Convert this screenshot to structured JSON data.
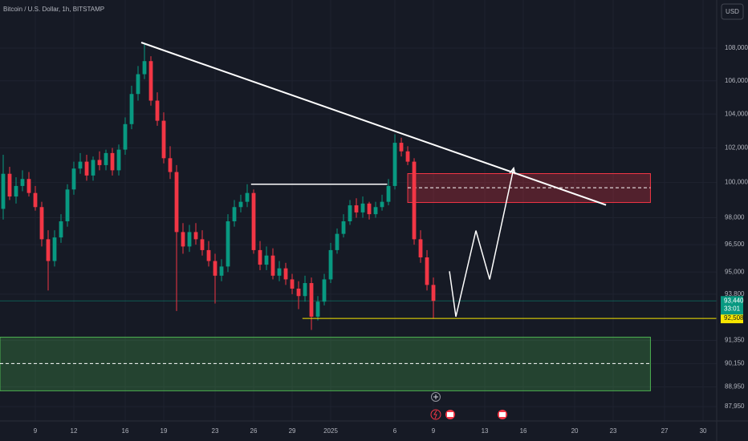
{
  "chart_data": {
    "type": "candlestick",
    "title": "Bitcoin / U.S. Dollar, 1h, BITSTAMP",
    "currency": "USD",
    "log_scale": true,
    "up_color": "#089981",
    "down_color": "#f23645",
    "xlim": [
      -2.75,
      53.06
    ],
    "xticks": [
      {
        "value": 0,
        "label": "9"
      },
      {
        "value": 3,
        "label": "12"
      },
      {
        "value": 7,
        "label": "16"
      },
      {
        "value": 10,
        "label": "19"
      },
      {
        "value": 14,
        "label": "23"
      },
      {
        "value": 17,
        "label": "26"
      },
      {
        "value": 20,
        "label": "29"
      },
      {
        "value": 23,
        "label": "2025"
      },
      {
        "value": 28,
        "label": "6"
      },
      {
        "value": 31,
        "label": "9"
      },
      {
        "value": 35,
        "label": "13"
      },
      {
        "value": 38,
        "label": "16"
      },
      {
        "value": 42,
        "label": "20"
      },
      {
        "value": 45,
        "label": "23"
      },
      {
        "value": 49,
        "label": "27"
      },
      {
        "value": 52,
        "label": "30"
      }
    ],
    "ylim": [
      87230,
      111020
    ],
    "yticks": [
      {
        "value": 108000,
        "label": "108,000"
      },
      {
        "value": 106000,
        "label": "106,000"
      },
      {
        "value": 104000,
        "label": "104,000"
      },
      {
        "value": 102000,
        "label": "102,000"
      },
      {
        "value": 100000,
        "label": "100,000"
      },
      {
        "value": 98000,
        "label": "98,000"
      },
      {
        "value": 96500,
        "label": "96,500"
      },
      {
        "value": 95000,
        "label": "95,000"
      },
      {
        "value": 93800,
        "label": "93,800"
      },
      {
        "value": 91350,
        "label": "91,350"
      },
      {
        "value": 90150,
        "label": "90,150"
      },
      {
        "value": 88950,
        "label": "88,950"
      },
      {
        "value": 87950,
        "label": "87,950"
      }
    ],
    "x": [
      -2.5,
      -2,
      -1.5,
      -1,
      -0.5,
      0,
      0.5,
      1,
      1.5,
      2,
      2.5,
      3,
      3.5,
      4,
      4.5,
      5,
      5.5,
      6,
      6.5,
      7,
      7.5,
      8,
      8.5,
      9,
      9.5,
      10,
      10.5,
      11,
      11.5,
      12,
      12.5,
      13,
      13.5,
      14,
      14.5,
      15,
      15.5,
      16,
      16.5,
      17,
      17.5,
      18,
      18.5,
      19,
      19.5,
      20,
      20.5,
      21,
      21.5,
      22,
      22.5,
      23,
      23.5,
      24,
      24.5,
      25,
      25.5,
      26,
      26.5,
      27,
      27.5,
      28,
      28.5,
      29,
      29.5,
      30,
      30.5,
      31
    ],
    "open": [
      98500,
      100500,
      99200,
      99800,
      100200,
      99400,
      98600,
      96800,
      95600,
      96900,
      97800,
      99600,
      100800,
      101200,
      100400,
      101300,
      101000,
      101700,
      100700,
      101900,
      103400,
      105200,
      106400,
      107200,
      104800,
      103600,
      101400,
      100600,
      97200,
      96400,
      97200,
      96800,
      96200,
      95600,
      94800,
      95300,
      97800,
      98600,
      98900,
      99400,
      96200,
      95400,
      95900,
      94800,
      95200,
      94600,
      94100,
      93700,
      94400,
      92600,
      93400,
      94600,
      96200,
      97100,
      97800,
      98700,
      98300,
      98800,
      98200,
      98600,
      98900,
      99800,
      102300,
      101800,
      101200,
      96800,
      95800,
      94300
    ],
    "high": [
      101600,
      100900,
      100300,
      100700,
      100600,
      99800,
      98900,
      97300,
      97300,
      98200,
      99900,
      101200,
      101700,
      101600,
      101500,
      101800,
      101900,
      102000,
      102200,
      103800,
      105700,
      106900,
      108300,
      107500,
      105300,
      104100,
      102100,
      101000,
      97700,
      97600,
      97700,
      97300,
      96700,
      96000,
      95700,
      98200,
      99000,
      99300,
      99900,
      99600,
      96700,
      96400,
      96300,
      95600,
      95500,
      94900,
      94500,
      94800,
      94700,
      93700,
      94900,
      96600,
      97400,
      98200,
      99000,
      99100,
      99200,
      98900,
      98900,
      99300,
      100200,
      102800,
      102600,
      102100,
      101400,
      97300,
      96200,
      94700
    ],
    "low": [
      97900,
      99000,
      98800,
      99500,
      99200,
      98400,
      96400,
      94000,
      95300,
      96600,
      97500,
      99300,
      100500,
      100100,
      100100,
      100700,
      100700,
      100400,
      100400,
      101600,
      103100,
      104800,
      106100,
      104500,
      103300,
      101100,
      100200,
      92900,
      96000,
      96100,
      96500,
      95900,
      95300,
      93300,
      94500,
      95000,
      97500,
      98300,
      98600,
      96000,
      95100,
      95100,
      94600,
      94500,
      94300,
      93800,
      93000,
      93400,
      91900,
      92400,
      93200,
      94400,
      96000,
      96900,
      97600,
      98000,
      98000,
      97900,
      98000,
      98400,
      98700,
      99600,
      101500,
      101000,
      96500,
      95500,
      94000,
      92500
    ],
    "close": [
      100500,
      99200,
      99800,
      100200,
      99400,
      98600,
      96800,
      95600,
      96900,
      97800,
      99600,
      100800,
      101200,
      100400,
      101300,
      101000,
      101700,
      100700,
      101900,
      103400,
      105200,
      106400,
      107200,
      104800,
      103600,
      101400,
      100600,
      97200,
      96400,
      97200,
      96800,
      96200,
      95600,
      94800,
      95300,
      97800,
      98600,
      98900,
      99400,
      96200,
      95400,
      95900,
      94800,
      95200,
      94600,
      94100,
      93700,
      94400,
      92600,
      93400,
      94600,
      96200,
      97100,
      97800,
      98700,
      98300,
      98800,
      98200,
      98600,
      98900,
      99800,
      102300,
      101800,
      101200,
      96800,
      95800,
      94300,
      93440
    ],
    "trendline": {
      "x": [
        8.25,
        44.44
      ],
      "y": [
        108350,
        98720
      ],
      "color": "#ffffff"
    },
    "level_line": {
      "x": [
        16.8,
        27.4
      ],
      "y": 99900,
      "color": "#ffffff"
    },
    "zones": [
      {
        "x": [
          29.0,
          47.9
        ],
        "y": [
          100510,
          98860
        ],
        "mid": 99700,
        "color": "#f23645"
      },
      {
        "x": [
          -2.75,
          47.9
        ],
        "y": [
          91520,
          88750
        ],
        "mid": 90150,
        "color": "#4caf50"
      }
    ],
    "projection": {
      "x": [
        32.25,
        32.75,
        34.31,
        35.38,
        37.25
      ],
      "y": [
        95040,
        92600,
        97280,
        94600,
        100830
      ],
      "color": "#ffffff"
    },
    "support": {
      "value": 92508,
      "label": "92,508",
      "x0": 20.8,
      "color": "#f7e600"
    },
    "last_price": {
      "value": 93440,
      "label": "93,440",
      "countdown": "33:01",
      "color": "#089981"
    }
  }
}
